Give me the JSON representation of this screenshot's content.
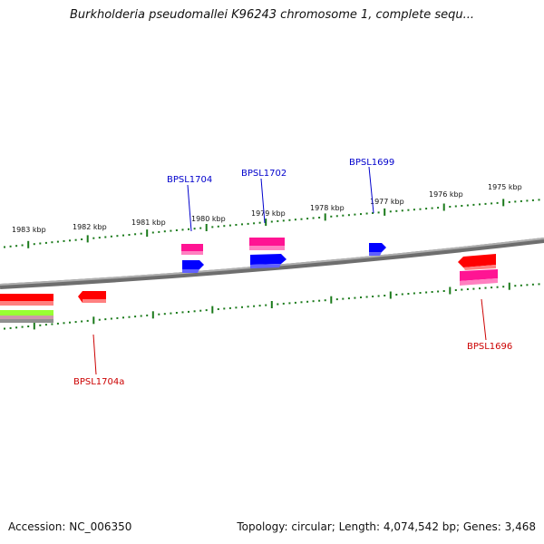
{
  "title": "Burkholderia pseudomallei K96243 chromosome 1, complete sequ...",
  "footer": {
    "accession": "Accession: NC_006350",
    "summary": "Topology: circular; Length: 4,074,542 bp; Genes: 3,468"
  },
  "scale_ticks": [
    "1983 kbp",
    "1982 kbp",
    "1981 kbp",
    "1980 kbp",
    "1979 kbp",
    "1978 kbp",
    "1977 kbp",
    "1976 kbp",
    "1975 kbp"
  ],
  "gene_labels": {
    "forward": [
      "BPSL1704",
      "BPSL1702",
      "BPSL1699"
    ],
    "reverse": [
      "BPSL1704a",
      "BPSL1696"
    ]
  },
  "colors": {
    "forward_label": "#0000cc",
    "reverse_label": "#cc0000",
    "tick": "#1a7a1a",
    "backbone": "#808080",
    "cds_pink": "#ff1493",
    "cds_blue": "#0000ff",
    "cds_red": "#ff0000",
    "cds_green": "#99ff33"
  }
}
